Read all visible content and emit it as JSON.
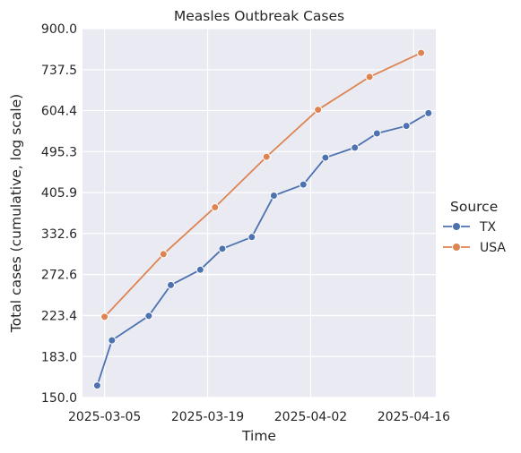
{
  "chart_data": {
    "type": "line",
    "title": "Measles Outbreak Cases",
    "xlabel": "Time",
    "ylabel": "Total cases (cumulative, log scale)",
    "yscale": "log",
    "ylim": [
      150.0,
      900.0
    ],
    "yticks": [
      150.0,
      183.0,
      223.4,
      272.6,
      332.6,
      405.9,
      495.3,
      604.4,
      737.5,
      900.0
    ],
    "ytick_labels": [
      "150.0",
      "183.0",
      "223.4",
      "272.6",
      "332.6",
      "405.9",
      "495.3",
      "604.4",
      "737.5",
      "900.0"
    ],
    "xlim": [
      "2025-03-02",
      "2025-04-19"
    ],
    "xticks": [
      "2025-03-05",
      "2025-03-19",
      "2025-04-02",
      "2025-04-16"
    ],
    "xtick_labels": [
      "2025-03-05",
      "2025-03-19",
      "2025-04-02",
      "2025-04-16"
    ],
    "grid": true,
    "legend": {
      "title": "Source",
      "placement": "right"
    },
    "series": [
      {
        "name": "TX",
        "color": "#4c72b0",
        "x": [
          "2025-03-04",
          "2025-03-06",
          "2025-03-11",
          "2025-03-14",
          "2025-03-18",
          "2025-03-21",
          "2025-03-25",
          "2025-03-28",
          "2025-04-01",
          "2025-04-04",
          "2025-04-08",
          "2025-04-11",
          "2025-04-15",
          "2025-04-18"
        ],
        "values": [
          159,
          198,
          223,
          259,
          279,
          309,
          327,
          400,
          422,
          481,
          505,
          541,
          561,
          597
        ]
      },
      {
        "name": "USA",
        "color": "#dd8452",
        "x": [
          "2025-03-05",
          "2025-03-13",
          "2025-03-20",
          "2025-03-27",
          "2025-04-03",
          "2025-04-10",
          "2025-04-17"
        ],
        "values": [
          222,
          301,
          378,
          483,
          607,
          712,
          800
        ]
      }
    ]
  }
}
